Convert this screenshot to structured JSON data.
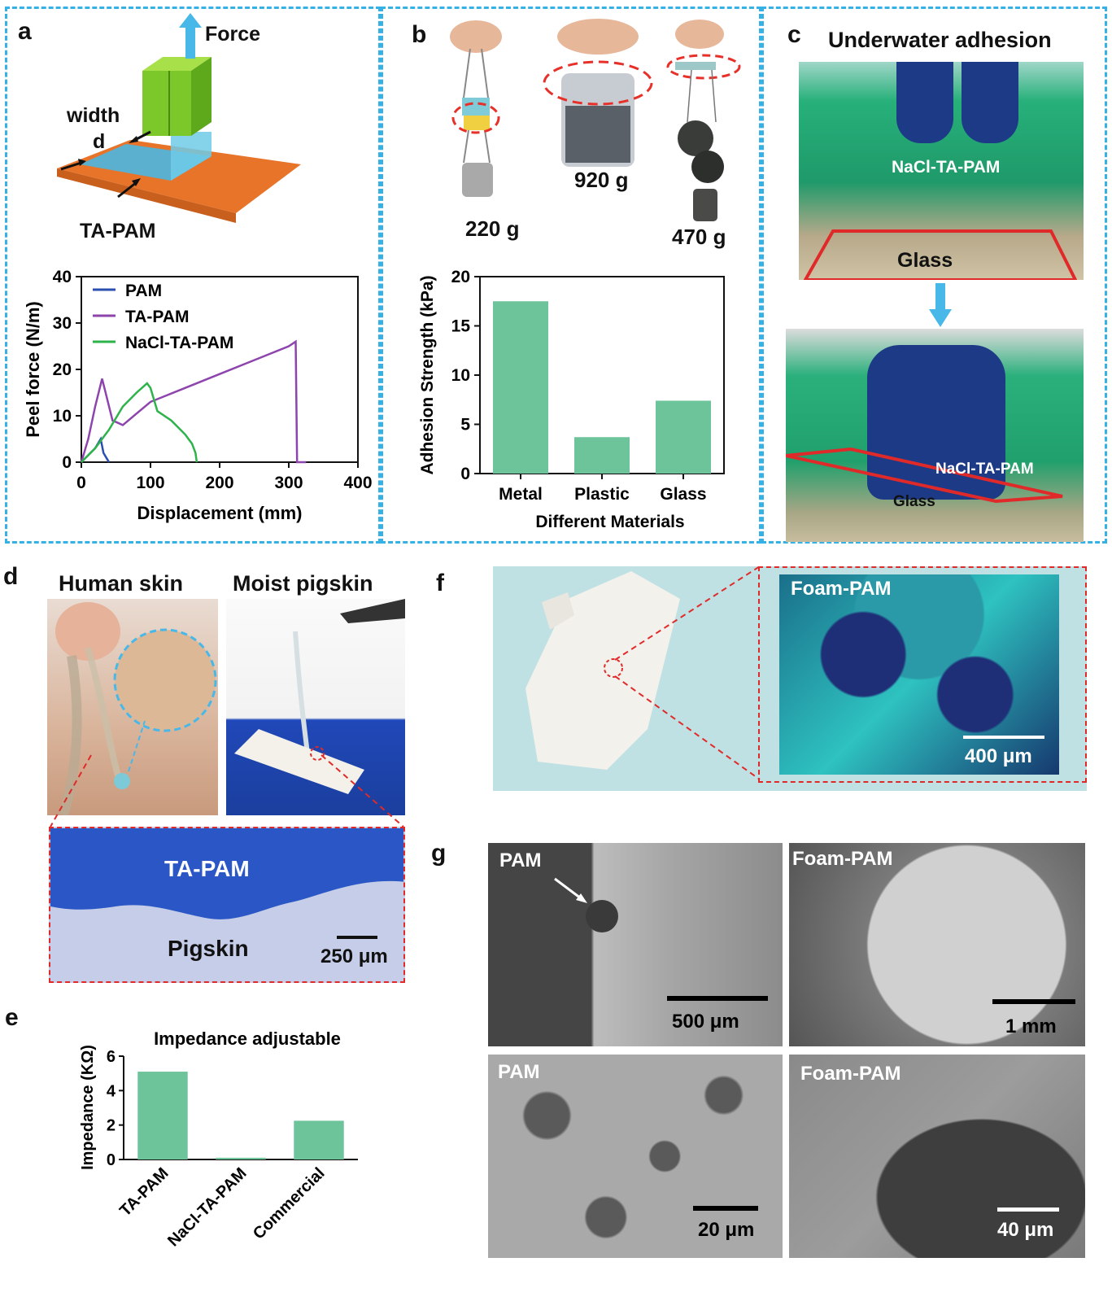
{
  "panels": {
    "a": {
      "letter": "a",
      "schematic": {
        "force_label": "Force",
        "width_label": "width",
        "d_label": "d",
        "material_label": "TA-PAM"
      }
    },
    "b": {
      "letter": "b",
      "photo_labels": [
        "220 g",
        "920 g",
        "470 g"
      ]
    },
    "c": {
      "letter": "c",
      "title": "Underwater adhesion",
      "top_hydrogel": "NaCl-TA-PAM",
      "top_substrate": "Glass",
      "bottom_hydrogel": "NaCl-TA-PAM",
      "bottom_substrate": "Glass"
    },
    "d": {
      "letter": "d",
      "left_title": "Human skin",
      "right_title": "Moist pigskin",
      "zoom_top": "TA-PAM",
      "zoom_bottom": "Pigskin",
      "scale": "250 μm"
    },
    "e": {
      "letter": "e"
    },
    "f": {
      "letter": "f",
      "inset_label": "Foam-PAM",
      "scale": "400 μm"
    },
    "g": {
      "letter": "g",
      "tl_label": "PAM",
      "tl_scale": "500 μm",
      "tr_label": "Foam-PAM",
      "tr_scale": "1 mm",
      "bl_label": "PAM",
      "bl_scale": "20 μm",
      "br_label": "Foam-PAM",
      "br_scale": "40 μm"
    }
  },
  "chart_data": [
    {
      "id": "peel",
      "type": "line",
      "title": "",
      "xlabel": "Displacement (mm)",
      "ylabel": "Peel force (N/m)",
      "xlim": [
        0,
        400
      ],
      "ylim": [
        0,
        40
      ],
      "xticks": [
        "0",
        "100",
        "200",
        "300",
        "400"
      ],
      "yticks": [
        "0",
        "10",
        "20",
        "30",
        "40"
      ],
      "legend_position": "top-left",
      "series": [
        {
          "name": "PAM",
          "color": "#2b4fb0",
          "x": [
            0,
            10,
            20,
            28,
            32,
            38,
            40
          ],
          "y": [
            0,
            1.5,
            3,
            5,
            2,
            0.5,
            0
          ]
        },
        {
          "name": "TA-PAM",
          "color": "#8e44ad",
          "x": [
            0,
            10,
            20,
            30,
            35,
            45,
            60,
            100,
            150,
            200,
            250,
            300,
            310,
            312,
            325
          ],
          "y": [
            0,
            5,
            12,
            18,
            15,
            9,
            8,
            13,
            16,
            19,
            22,
            25,
            26,
            0,
            0
          ]
        },
        {
          "name": "NaCl-TA-PAM",
          "color": "#2eb34a",
          "x": [
            0,
            20,
            40,
            60,
            80,
            95,
            100,
            110,
            130,
            150,
            160,
            165,
            167
          ],
          "y": [
            0,
            3,
            7,
            12,
            15,
            17,
            16,
            11,
            9,
            6,
            4,
            2,
            0
          ]
        }
      ]
    },
    {
      "id": "adhesion",
      "type": "bar",
      "title": "",
      "xlabel": "Different Materials",
      "ylabel": "Adhesion Strength (kPa)",
      "categories": [
        "Metal",
        "Plastic",
        "Glass"
      ],
      "values": [
        17.5,
        3.7,
        7.4
      ],
      "ylim": [
        0,
        20
      ],
      "yticks": [
        "0",
        "5",
        "10",
        "15",
        "20"
      ],
      "color": "#6ec49a"
    },
    {
      "id": "impedance",
      "type": "bar",
      "title": "Impedance adjustable",
      "xlabel": "",
      "ylabel": "Impedance (KΩ)",
      "categories": [
        "TA-PAM",
        "NaCl-TA-PAM",
        "Commercial"
      ],
      "values": [
        5.1,
        0.1,
        2.25
      ],
      "ylim": [
        0,
        6
      ],
      "yticks": [
        "0",
        "2",
        "4",
        "6"
      ],
      "color": "#6ec49a"
    }
  ]
}
